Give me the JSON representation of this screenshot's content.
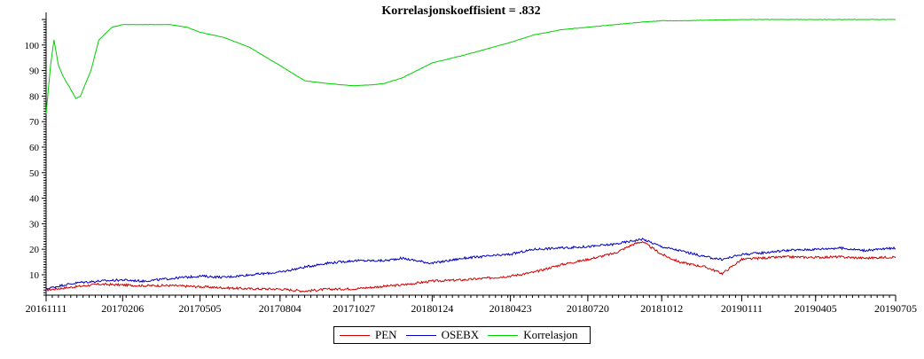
{
  "chart_data": {
    "type": "line",
    "title": "Korrelasjonskoeffisient =  .832",
    "xlabel": "",
    "ylabel": "",
    "ylim": [
      2,
      110
    ],
    "yticks": [
      10,
      20,
      30,
      40,
      50,
      60,
      70,
      80,
      90,
      100
    ],
    "x_tick_labels": [
      "20161111",
      "20170206",
      "20170505",
      "20170804",
      "20171027",
      "20180124",
      "20180423",
      "20180720",
      "20181012",
      "20190111",
      "20190405",
      "20190705"
    ],
    "grid": false,
    "legend_position": "bottom-center",
    "series": [
      {
        "name": "PEN",
        "color": "#d00000",
        "points": [
          [
            "20161111",
            4.0
          ],
          [
            "20161201",
            4.8
          ],
          [
            "20161220",
            5.5
          ],
          [
            "20170110",
            6.3
          ],
          [
            "20170206",
            6.0
          ],
          [
            "20170301",
            5.7
          ],
          [
            "20170330",
            5.8
          ],
          [
            "20170505",
            5.3
          ],
          [
            "20170601",
            4.9
          ],
          [
            "20170701",
            4.5
          ],
          [
            "20170804",
            4.4
          ],
          [
            "20170901",
            3.6
          ],
          [
            "20170925",
            4.3
          ],
          [
            "20171027",
            4.5
          ],
          [
            "20171201",
            5.5
          ],
          [
            "20171220",
            6.0
          ],
          [
            "20180124",
            7.5
          ],
          [
            "20180301",
            8.0
          ],
          [
            "20180401",
            8.8
          ],
          [
            "20180423",
            9.5
          ],
          [
            "20180520",
            11.0
          ],
          [
            "20180620",
            14.0
          ],
          [
            "20180720",
            16.0
          ],
          [
            "20180820",
            18.5
          ],
          [
            "20180910",
            22.0
          ],
          [
            "20180920",
            23.0
          ],
          [
            "20181012",
            18.0
          ],
          [
            "20181101",
            15.0
          ],
          [
            "20181201",
            13.0
          ],
          [
            "20181220",
            10.5
          ],
          [
            "20190111",
            16.0
          ],
          [
            "20190201",
            16.5
          ],
          [
            "20190301",
            17.0
          ],
          [
            "20190405",
            16.8
          ],
          [
            "20190501",
            17.0
          ],
          [
            "20190601",
            16.5
          ],
          [
            "20190705",
            17.0
          ]
        ]
      },
      {
        "name": "OSEBX",
        "color": "#0000c0",
        "points": [
          [
            "20161111",
            4.5
          ],
          [
            "20161201",
            6.0
          ],
          [
            "20161220",
            7.0
          ],
          [
            "20170110",
            7.5
          ],
          [
            "20170206",
            8.0
          ],
          [
            "20170301",
            7.5
          ],
          [
            "20170401",
            8.5
          ],
          [
            "20170505",
            9.5
          ],
          [
            "20170601",
            9.0
          ],
          [
            "20170701",
            10.0
          ],
          [
            "20170804",
            11.0
          ],
          [
            "20170901",
            13.0
          ],
          [
            "20170925",
            14.5
          ],
          [
            "20171027",
            15.5
          ],
          [
            "20171201",
            15.5
          ],
          [
            "20171220",
            16.5
          ],
          [
            "20180124",
            14.5
          ],
          [
            "20180301",
            16.5
          ],
          [
            "20180423",
            18.0
          ],
          [
            "20180520",
            20.0
          ],
          [
            "20180620",
            20.5
          ],
          [
            "20180720",
            21.0
          ],
          [
            "20180820",
            22.0
          ],
          [
            "20180920",
            24.0
          ],
          [
            "20181012",
            21.0
          ],
          [
            "20181101",
            19.5
          ],
          [
            "20181201",
            17.0
          ],
          [
            "20181220",
            16.0
          ],
          [
            "20190111",
            18.0
          ],
          [
            "20190201",
            18.5
          ],
          [
            "20190301",
            19.5
          ],
          [
            "20190405",
            20.0
          ],
          [
            "20190501",
            20.5
          ],
          [
            "20190601",
            19.5
          ],
          [
            "20190705",
            20.5
          ]
        ]
      },
      {
        "name": "Korrelasjon",
        "color": "#00d000",
        "points": [
          [
            "20161111",
            73
          ],
          [
            "20161116",
            92
          ],
          [
            "20161120",
            102
          ],
          [
            "20161125",
            92
          ],
          [
            "20161130",
            88
          ],
          [
            "20161210",
            82
          ],
          [
            "20161215",
            79
          ],
          [
            "20161220",
            80
          ],
          [
            "20170101",
            90
          ],
          [
            "20170110",
            102
          ],
          [
            "20170125",
            107
          ],
          [
            "20170206",
            108
          ],
          [
            "20170301",
            108
          ],
          [
            "20170401",
            108
          ],
          [
            "20170420",
            107
          ],
          [
            "20170505",
            105
          ],
          [
            "20170601",
            103
          ],
          [
            "20170701",
            99
          ],
          [
            "20170720",
            95
          ],
          [
            "20170804",
            92
          ],
          [
            "20170901",
            86
          ],
          [
            "20170925",
            85
          ],
          [
            "20171027",
            84
          ],
          [
            "20171120",
            84.5
          ],
          [
            "20171201",
            85
          ],
          [
            "20171220",
            87
          ],
          [
            "20180124",
            93
          ],
          [
            "20180301",
            96
          ],
          [
            "20180423",
            101
          ],
          [
            "20180520",
            104
          ],
          [
            "20180620",
            106
          ],
          [
            "20180720",
            107
          ],
          [
            "20180820",
            108
          ],
          [
            "20180920",
            109
          ],
          [
            "20181012",
            109.5
          ],
          [
            "20181101",
            109.5
          ],
          [
            "20190111",
            110
          ],
          [
            "20190405",
            110
          ],
          [
            "20190705",
            110
          ]
        ]
      }
    ]
  }
}
